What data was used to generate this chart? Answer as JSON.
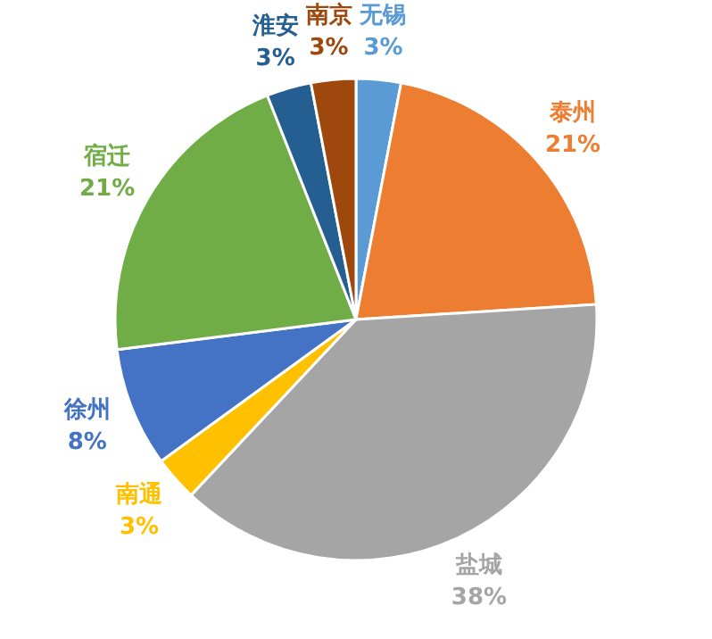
{
  "chart_data": {
    "type": "pie",
    "categories": [
      "无锡",
      "泰州",
      "盐城",
      "南通",
      "徐州",
      "宿迁",
      "淮安",
      "南京"
    ],
    "values": [
      3,
      21,
      38,
      3,
      8,
      21,
      3,
      3
    ],
    "colors": [
      "#5b9bd5",
      "#ed7d31",
      "#a5a5a5",
      "#ffc000",
      "#4472c4",
      "#70ad47",
      "#255e91",
      "#9e480e"
    ],
    "value_labels": [
      "3%",
      "21%",
      "38%",
      "3%",
      "8%",
      "21%",
      "3%",
      "3%"
    ]
  }
}
